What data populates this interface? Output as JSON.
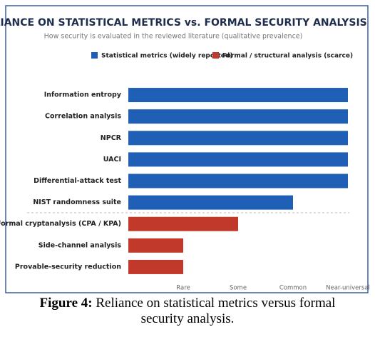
{
  "chart_data": {
    "type": "barh",
    "title": "RELIANCE ON STATISTICAL METRICS vs. FORMAL SECURITY ANALYSIS",
    "subtitle": "How security is evaluated in the reviewed literature (qualitative prevalence)",
    "categories": [
      "Information entropy",
      "Correlation analysis",
      "NPCR",
      "UACI",
      "Differential-attack test",
      "NIST randomness suite",
      "Formal cryptanalysis (CPA / KPA)",
      "Side-channel analysis",
      "Provable-security reduction"
    ],
    "series": [
      {
        "name": "Statistical metrics (widely reported)",
        "color": "#1f5fb5",
        "values": [
          4,
          4,
          4,
          4,
          4,
          3,
          null,
          null,
          null
        ]
      },
      {
        "name": "Formal / structural analysis (scarce)",
        "color": "#c0392b",
        "values": [
          null,
          null,
          null,
          null,
          null,
          null,
          2,
          1,
          1
        ]
      }
    ],
    "xlim": [
      0,
      4
    ],
    "xticks": [
      {
        "value": 1,
        "label": "Rare"
      },
      {
        "value": 2,
        "label": "Some"
      },
      {
        "value": 3,
        "label": "Common"
      },
      {
        "value": 4,
        "label": "Near-universal"
      }
    ],
    "grid": false,
    "legend": "top"
  },
  "caption": {
    "label": "Figure 4:",
    "text": "Reliance on statistical metrics versus formal security analysis."
  }
}
